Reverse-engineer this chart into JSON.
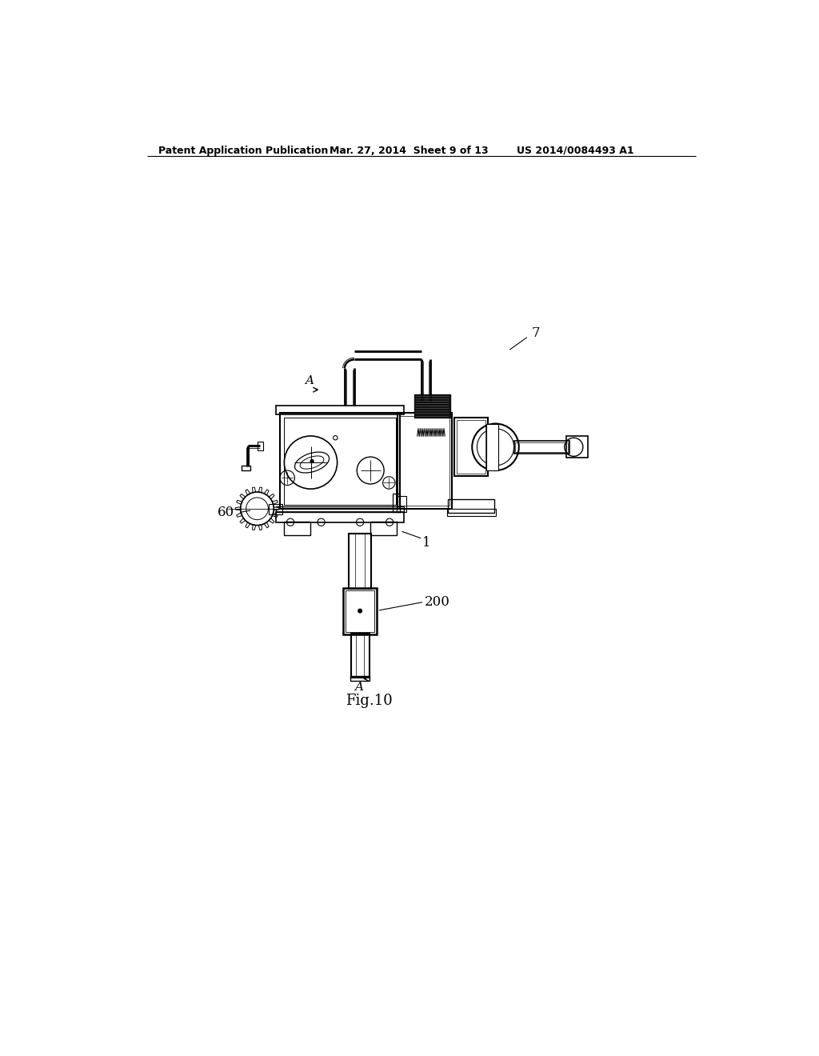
{
  "bg_color": "#ffffff",
  "lc": "#000000",
  "header_left": "Patent Application Publication",
  "header_center": "Mar. 27, 2014  Sheet 9 of 13",
  "header_right": "US 2014/0084493 A1",
  "caption": "Fig.10",
  "label_7": "7",
  "label_A_top": "A",
  "label_60": "60",
  "label_1": "1",
  "label_200": "200",
  "label_A_bot": "A"
}
